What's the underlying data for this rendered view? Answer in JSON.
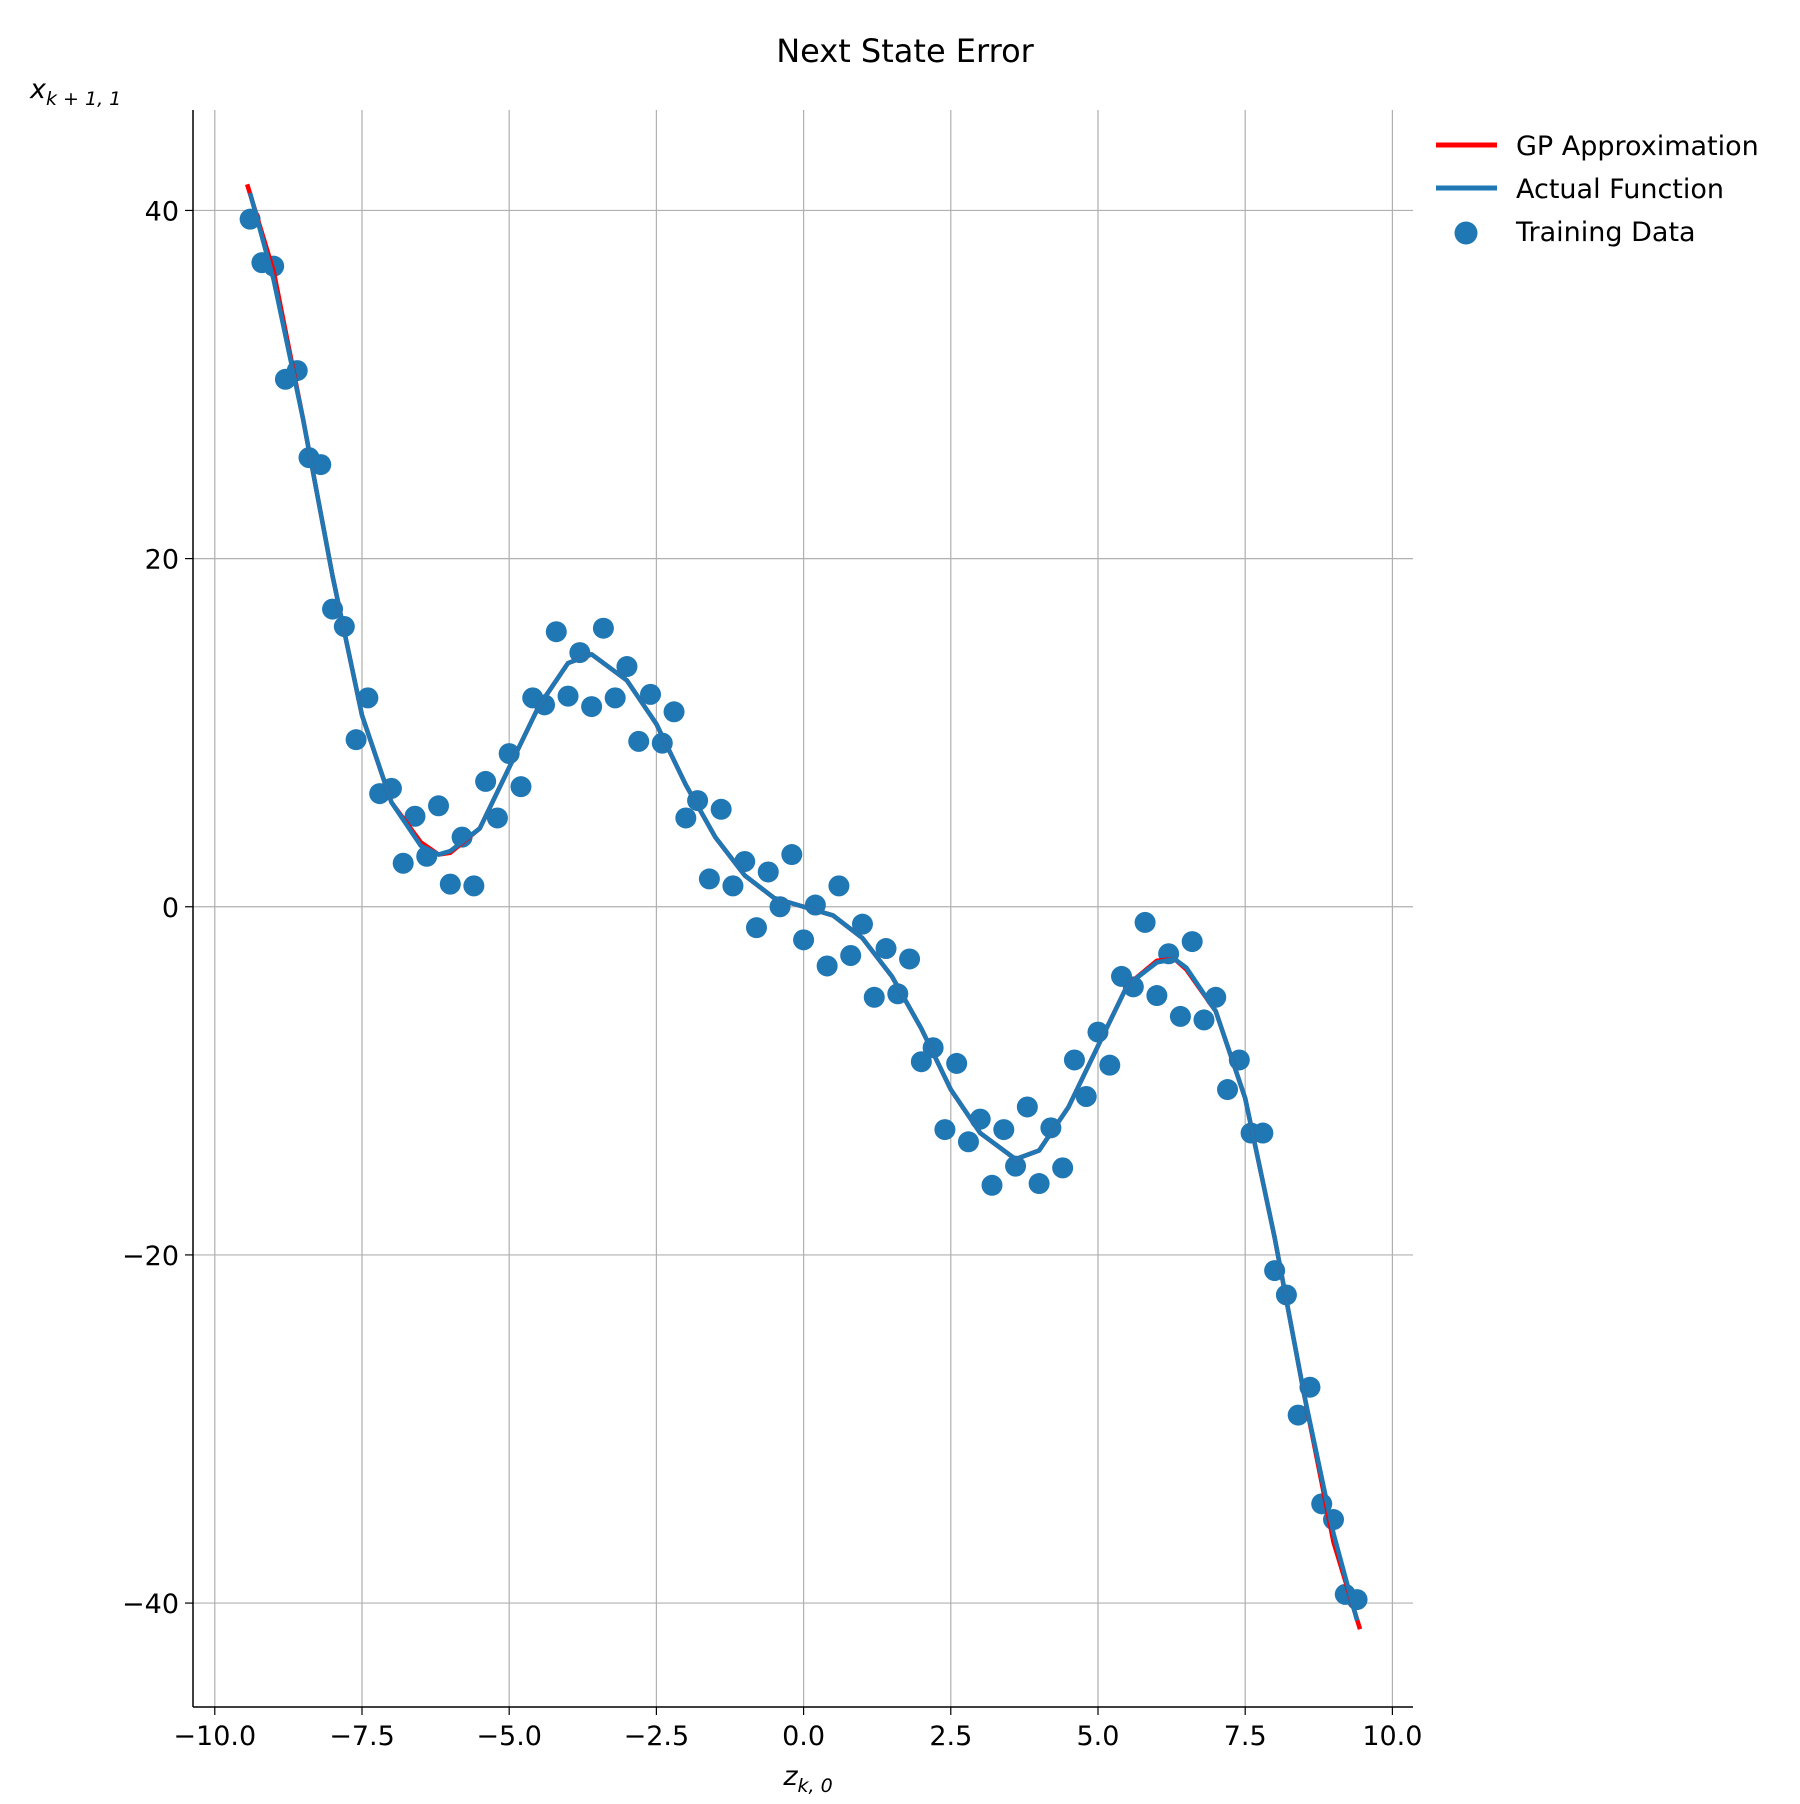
{
  "chart_data": {
    "type": "combo",
    "title": "Next State Error",
    "xlabel": "z",
    "xlabel_subscript": "k, 0",
    "ylabel": "x",
    "ylabel_subscript": "k + 1, 1",
    "xlim": [
      -10.37,
      10.35
    ],
    "ylim": [
      -45.97,
      45.77
    ],
    "xticks": [
      {
        "value": -10,
        "label": "−10.0"
      },
      {
        "value": -7.5,
        "label": "−7.5"
      },
      {
        "value": -5,
        "label": "−5.0"
      },
      {
        "value": -2.5,
        "label": "−2.5"
      },
      {
        "value": 0,
        "label": "0.0"
      },
      {
        "value": 2.5,
        "label": "2.5"
      },
      {
        "value": 5,
        "label": "5.0"
      },
      {
        "value": 7.5,
        "label": "7.5"
      },
      {
        "value": 10,
        "label": "10.0"
      }
    ],
    "yticks": [
      {
        "value": -40,
        "label": "−40"
      },
      {
        "value": -20,
        "label": "−20"
      },
      0,
      20,
      40
    ],
    "grid": true,
    "legend": "outside-right-top",
    "series": [
      {
        "name": "GP Approximation",
        "type": "line",
        "color": "#ff0000",
        "x": [
          -9.45,
          -9,
          -8.5,
          -8,
          -7.5,
          -7,
          -6.5,
          -6.2,
          -6,
          -5.5,
          -5,
          -4.5,
          -4,
          -3.6,
          -3,
          -2.5,
          -2,
          -1.5,
          -1,
          -0.5,
          0,
          0.5,
          1,
          1.5,
          2,
          2.5,
          3,
          3.6,
          4,
          4.5,
          5,
          5.5,
          6,
          6.3,
          6.5,
          7,
          7.5,
          8,
          8.5,
          9,
          9.45
        ],
        "values": [
          41.5,
          36.5,
          28,
          19,
          11,
          6,
          3.7,
          3,
          3.1,
          4.5,
          8,
          11.5,
          14,
          14.5,
          13,
          10.5,
          7,
          4,
          1.8,
          0.5,
          0,
          -0.5,
          -1.8,
          -4,
          -7,
          -10.5,
          -13,
          -14.5,
          -14,
          -11.5,
          -8,
          -4.5,
          -3.1,
          -3,
          -3.6,
          -6,
          -11,
          -19,
          -28,
          -36.5,
          -41.5
        ]
      },
      {
        "name": "Actual Function",
        "type": "line",
        "color": "#1f77b4",
        "x": [
          -9.4,
          -9,
          -8.5,
          -8,
          -7.5,
          -7,
          -6.5,
          -6.2,
          -6,
          -5.5,
          -5,
          -4.5,
          -4,
          -3.6,
          -3,
          -2.5,
          -2,
          -1.5,
          -1,
          -0.5,
          0,
          0.5,
          1,
          1.5,
          2,
          2.5,
          3,
          3.6,
          4,
          4.5,
          5,
          5.5,
          6,
          6.3,
          6.5,
          7,
          7.5,
          8,
          8.5,
          9,
          9.4
        ],
        "values": [
          41,
          36,
          28,
          19,
          11,
          6,
          3.5,
          3,
          3.2,
          4.5,
          8,
          11.5,
          14,
          14.5,
          13,
          10.5,
          7,
          4,
          1.8,
          0.5,
          0,
          -0.5,
          -1.8,
          -4,
          -7,
          -10.5,
          -13,
          -14.5,
          -14,
          -11.5,
          -8,
          -4.5,
          -3.2,
          -3,
          -3.5,
          -6,
          -11,
          -19,
          -28,
          -36,
          -41
        ]
      },
      {
        "name": "Training Data",
        "type": "scatter",
        "color": "#1f77b4",
        "x": [
          -9.4,
          -9.2,
          -9,
          -8.8,
          -8.6,
          -8.4,
          -8.2,
          -8,
          -7.8,
          -7.6,
          -7.4,
          -7.2,
          -7,
          -6.8,
          -6.6,
          -6.4,
          -6.2,
          -6,
          -5.8,
          -5.6,
          -5.4,
          -5.2,
          -5,
          -4.8,
          -4.6,
          -4.4,
          -4.2,
          -4,
          -3.8,
          -3.6,
          -3.4,
          -3.2,
          -3,
          -2.8,
          -2.6,
          -2.4,
          -2.2,
          -2,
          -1.8,
          -1.6,
          -1.4,
          -1.2,
          -1,
          -0.8,
          -0.6,
          -0.4,
          -0.2,
          0,
          0.2,
          0.4,
          0.6,
          0.8,
          1,
          1.2,
          1.4,
          1.6,
          1.8,
          2,
          2.2,
          2.4,
          2.6,
          2.8,
          3,
          3.2,
          3.4,
          3.6,
          3.8,
          4,
          4.2,
          4.4,
          4.6,
          4.8,
          5,
          5.2,
          5.4,
          5.6,
          5.8,
          6,
          6.2,
          6.4,
          6.6,
          6.8,
          7,
          7.2,
          7.4,
          7.6,
          7.8,
          8,
          8.2,
          8.4,
          8.6,
          8.8,
          9,
          9.2,
          9.4
        ],
        "values": [
          39.5,
          37,
          36.8,
          30.3,
          30.8,
          25.8,
          25.4,
          17.1,
          16.1,
          9.6,
          12,
          6.5,
          6.8,
          2.5,
          5.2,
          2.9,
          5.8,
          1.3,
          4,
          1.2,
          7.2,
          5.1,
          8.8,
          6.9,
          12,
          11.6,
          15.8,
          12.1,
          14.6,
          11.5,
          16,
          12,
          13.8,
          9.5,
          12.2,
          9.4,
          11.2,
          5.1,
          6.1,
          1.6,
          5.6,
          1.2,
          2.6,
          -1.2,
          2,
          0,
          3,
          -1.9,
          0.1,
          -3.4,
          1.2,
          -2.8,
          -1,
          -5.2,
          -2.4,
          -5,
          -3,
          -8.9,
          -8.1,
          -12.8,
          -9,
          -13.5,
          -12.2,
          -16,
          -12.8,
          -14.9,
          -11.5,
          -15.9,
          -12.7,
          -15,
          -8.8,
          -10.9,
          -7.2,
          -9.1,
          -4,
          -4.6,
          -0.9,
          -5.1,
          -2.7,
          -6.3,
          -2,
          -6.5,
          -5.2,
          -10.5,
          -8.8,
          -13,
          -13,
          -20.9,
          -22.3,
          -29.2,
          -27.6,
          -34.3,
          -35.2,
          -39.5,
          -39.8
        ]
      }
    ]
  }
}
